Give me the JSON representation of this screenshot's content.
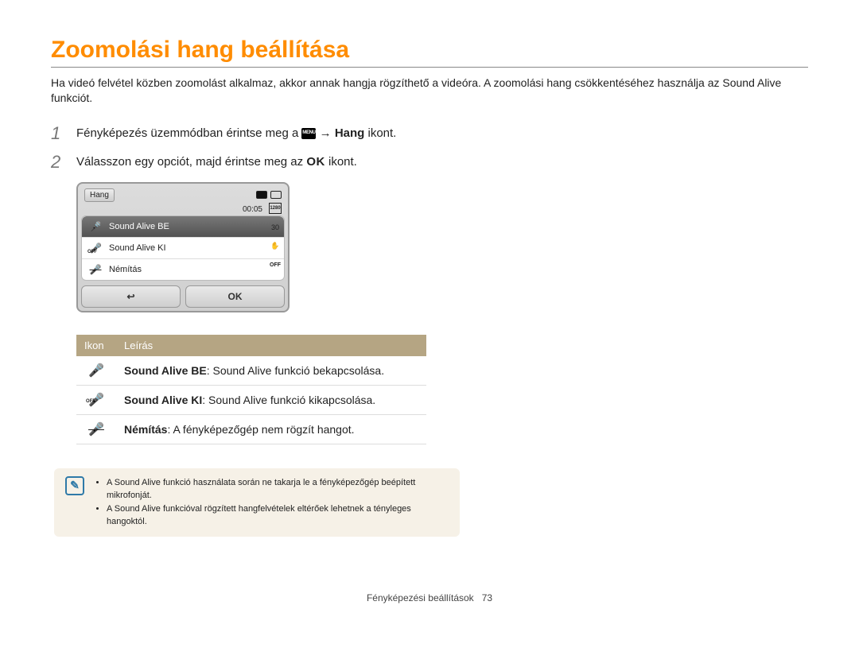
{
  "title": "Zoomolási hang beállítása",
  "intro": "Ha videó felvétel közben zoomolást alkalmaz, akkor annak hangja rögzíthető a videóra. A zoomolási hang csökkentéséhez használja az Sound Alive funkciót.",
  "steps": {
    "s1": {
      "num": "1",
      "pre": "Fényképezés üzemmódban érintse meg a ",
      "menu_badge": "MENU",
      "mid": " → ",
      "bold": "Hang",
      "post": " ikont."
    },
    "s2": {
      "num": "2",
      "pre": "Válasszon egy opciót, majd érintse meg az ",
      "ok_badge": "OK",
      "post": " ikont."
    }
  },
  "camera": {
    "header_left": "Hang",
    "time": "00:05",
    "rows": [
      {
        "icon": "🎤",
        "icon_name": "mic-icon",
        "label": "Sound Alive BE",
        "selected": true
      },
      {
        "icon": "🎤",
        "icon_name": "mic-off-icon",
        "sub": "OFF",
        "label": "Sound Alive KI",
        "selected": false
      },
      {
        "icon": "🎤",
        "icon_name": "mic-mute-icon",
        "strike": true,
        "label": "Némítás",
        "selected": false
      }
    ],
    "btn_back": "↩",
    "btn_ok": "OK",
    "right_icons": [
      "1280",
      "30",
      "✋",
      "OFF"
    ]
  },
  "table": {
    "head_icon": "Ikon",
    "head_desc": "Leírás",
    "rows": [
      {
        "icon": "🎤",
        "icon_name": "mic-icon",
        "bold": "Sound Alive BE",
        "rest": ": Sound Alive funkció bekapcsolása."
      },
      {
        "icon": "🎤",
        "icon_name": "mic-off-icon",
        "sub": "OFF",
        "bold": "Sound Alive KI",
        "rest": ": Sound Alive funkció kikapcsolása."
      },
      {
        "icon": "🎤",
        "icon_name": "mic-mute-icon",
        "strike": true,
        "bold": "Némítás",
        "rest": ": A fényképezőgép nem rögzít hangot."
      }
    ]
  },
  "note": {
    "items": [
      "A Sound Alive funkció használata során ne takarja le a fényképezőgép beépített mikrofonját.",
      "A Sound Alive funkcióval rögzített hangfelvételek eltérőek lehetnek a tényleges hangoktól."
    ]
  },
  "footer": {
    "label": "Fényképezési beállítások",
    "page": "73"
  },
  "colors": {
    "accent": "#ff8c00",
    "table_header": "#b5a583",
    "note_bg": "#f6f1e7",
    "note_icon": "#2f7aa8"
  }
}
